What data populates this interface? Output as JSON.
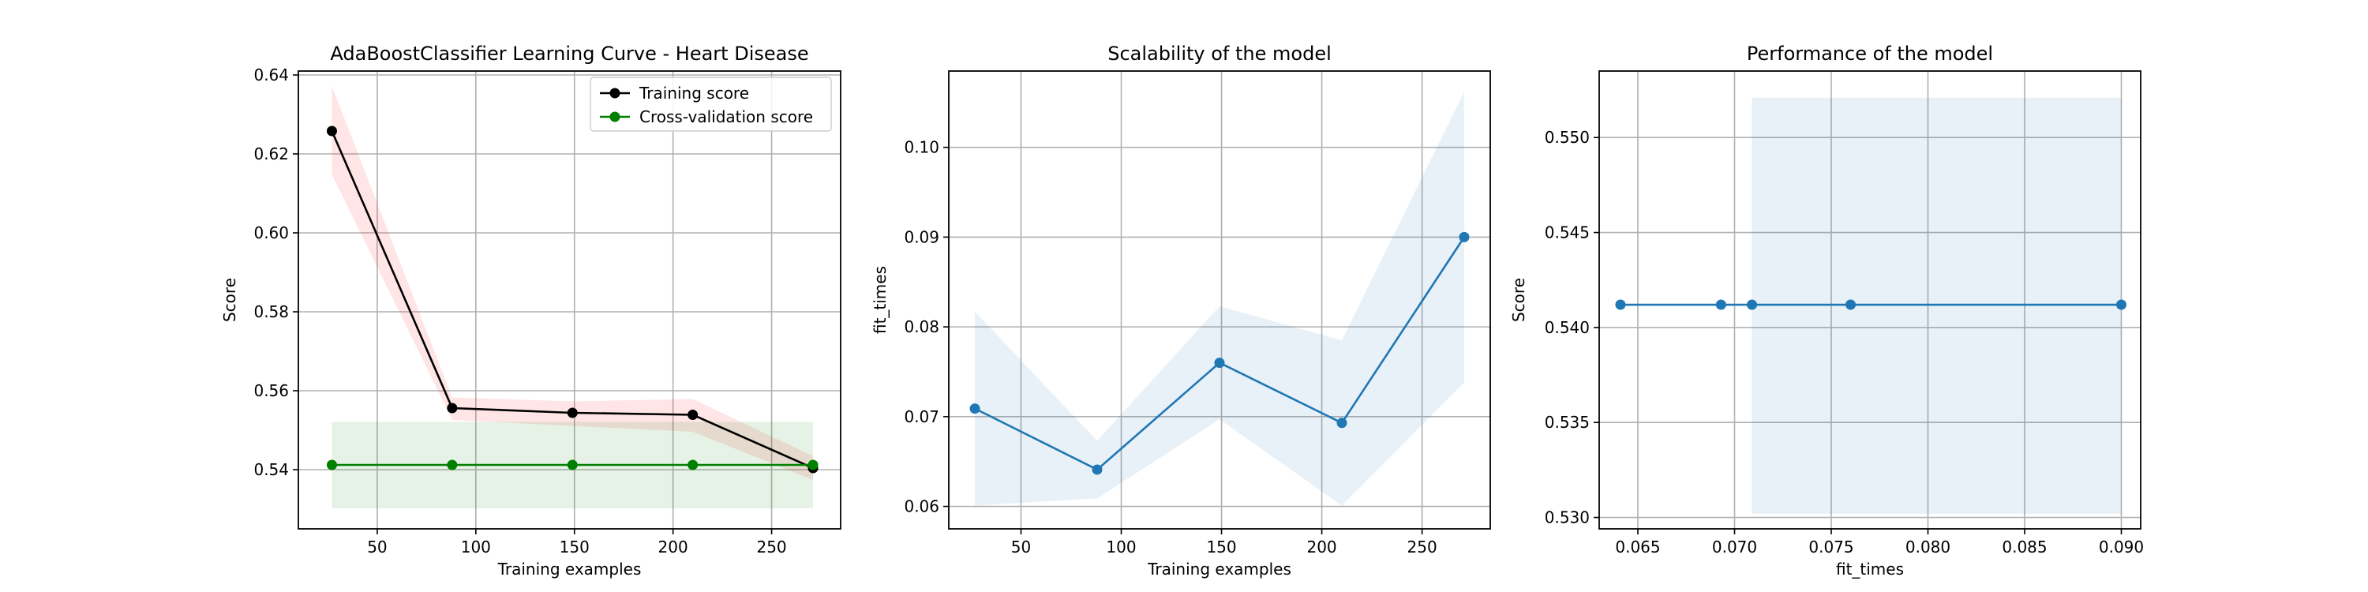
{
  "chart_data": [
    {
      "type": "line",
      "title": "AdaBoostClassifier Learning Curve - Heart Disease",
      "xlabel": "Training examples",
      "ylabel": "Score",
      "xlim": [
        10,
        285
      ],
      "ylim": [
        0.525,
        0.641
      ],
      "xticks": [
        50,
        100,
        150,
        200,
        250
      ],
      "yticks": [
        0.54,
        0.56,
        0.58,
        0.6,
        0.62,
        0.64
      ],
      "ytick_labels": [
        "0.54",
        "0.56",
        "0.58",
        "0.60",
        "0.62",
        "0.64"
      ],
      "grid": true,
      "legend": "upper right",
      "x": [
        27,
        88,
        149,
        210,
        271
      ],
      "series": [
        {
          "name": "Training score",
          "color": "#000000",
          "band_color": "#ff0000",
          "values": [
            0.6258,
            0.5556,
            0.5544,
            0.5539,
            0.5404
          ],
          "band_low": [
            0.6148,
            0.5526,
            0.5511,
            0.5496,
            0.5374
          ],
          "band_high": [
            0.6372,
            0.5583,
            0.5573,
            0.5579,
            0.5434
          ]
        },
        {
          "name": "Cross-validation score",
          "color": "#008000",
          "band_color": "#008000",
          "values": [
            0.5412,
            0.5412,
            0.5412,
            0.5412,
            0.5412
          ],
          "band_low": [
            0.5302,
            0.5302,
            0.5302,
            0.5302,
            0.5302
          ],
          "band_high": [
            0.5521,
            0.5521,
            0.5521,
            0.5521,
            0.5521
          ]
        }
      ]
    },
    {
      "type": "line",
      "title": "Scalability of the model",
      "xlabel": "Training examples",
      "ylabel": "fit_times",
      "xlim": [
        14,
        284
      ],
      "ylim": [
        0.0575,
        0.1085
      ],
      "xticks": [
        50,
        100,
        150,
        200,
        250
      ],
      "yticks": [
        0.06,
        0.07,
        0.08,
        0.09,
        0.1
      ],
      "ytick_labels": [
        "0.06",
        "0.07",
        "0.08",
        "0.09",
        "0.10"
      ],
      "grid": true,
      "x": [
        27,
        88,
        149,
        210,
        271
      ],
      "series": [
        {
          "color": "#1f77b4",
          "values": [
            0.0709,
            0.0641,
            0.076,
            0.0693,
            0.09
          ],
          "band_low": [
            0.0601,
            0.0609,
            0.0697,
            0.0601,
            0.0738
          ],
          "band_high": [
            0.0817,
            0.0673,
            0.0823,
            0.0785,
            0.1062
          ]
        }
      ]
    },
    {
      "type": "line",
      "title": "Performance of the model",
      "xlabel": "fit_times",
      "ylabel": "Score",
      "xlim": [
        0.063,
        0.091
      ],
      "ylim": [
        0.5294,
        0.5535
      ],
      "xticks": [
        0.065,
        0.07,
        0.075,
        0.08,
        0.085,
        0.09
      ],
      "xtick_labels": [
        "0.065",
        "0.070",
        "0.075",
        "0.080",
        "0.085",
        "0.090"
      ],
      "yticks": [
        0.53,
        0.535,
        0.54,
        0.545,
        0.55
      ],
      "ytick_labels": [
        "0.530",
        "0.535",
        "0.540",
        "0.545",
        "0.550"
      ],
      "grid": true,
      "series": [
        {
          "color": "#1f77b4",
          "x": [
            0.0641,
            0.0693,
            0.0709,
            0.076,
            0.09
          ],
          "values": [
            0.5412,
            0.5412,
            0.5412,
            0.5412,
            0.5412
          ],
          "band_x": [
            0.0709,
            0.09
          ],
          "band_low": [
            0.5302,
            0.5302
          ],
          "band_high": [
            0.5521,
            0.5521
          ]
        }
      ]
    }
  ]
}
